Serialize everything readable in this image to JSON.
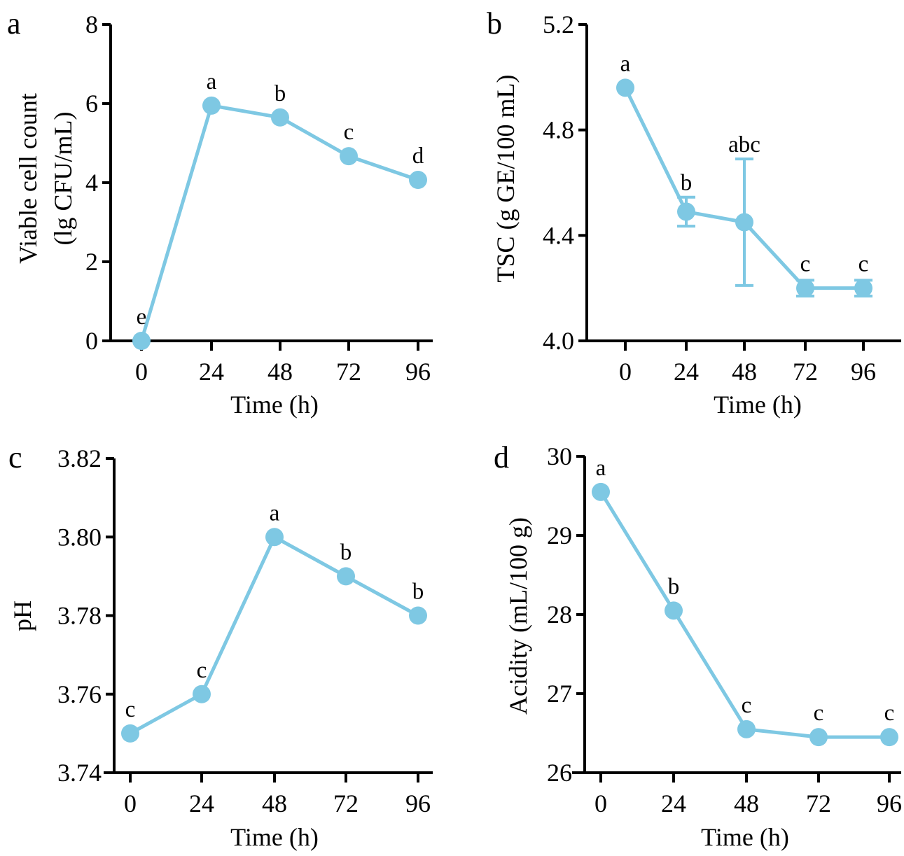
{
  "chart_data": [
    {
      "panel": "a",
      "type": "line",
      "title": "",
      "xlabel": "Time (h)",
      "ylabel_lines": [
        "Viable cell count",
        "(lg CFU/mL)"
      ],
      "x": [
        0,
        24,
        48,
        72,
        96
      ],
      "x_ticks": [
        "0",
        "24",
        "48",
        "72",
        "96"
      ],
      "y_ticks": [
        "0",
        "2",
        "4",
        "6",
        "8"
      ],
      "y_tick_values": [
        0,
        2,
        4,
        6,
        8
      ],
      "ylim": [
        0,
        8
      ],
      "values": [
        0,
        5.95,
        5.65,
        4.67,
        4.07
      ],
      "errors": [
        0,
        0,
        0,
        0,
        0
      ],
      "significance": [
        "e",
        "a",
        "b",
        "c",
        "d"
      ],
      "color": "#7ec8e3",
      "grid": false
    },
    {
      "panel": "b",
      "type": "line",
      "title": "",
      "xlabel": "Time (h)",
      "ylabel_lines": [
        "TSC (g GE/100 mL)"
      ],
      "x": [
        0,
        24,
        48,
        72,
        96
      ],
      "x_ticks": [
        "0",
        "24",
        "48",
        "72",
        "96"
      ],
      "y_ticks": [
        "4.0",
        "4.4",
        "4.8",
        "5.2"
      ],
      "y_tick_values": [
        4.0,
        4.4,
        4.8,
        5.2
      ],
      "ylim": [
        4.0,
        5.2
      ],
      "values": [
        4.96,
        4.49,
        4.45,
        4.2,
        4.2
      ],
      "errors": [
        0,
        0.055,
        0.24,
        0.03,
        0.03
      ],
      "significance": [
        "a",
        "b",
        "abc",
        "c",
        "c"
      ],
      "color": "#7ec8e3",
      "grid": false
    },
    {
      "panel": "c",
      "type": "line",
      "title": "",
      "xlabel": "Time (h)",
      "ylabel_lines": [
        "pH"
      ],
      "x": [
        0,
        24,
        48,
        72,
        96
      ],
      "x_ticks": [
        "0",
        "24",
        "48",
        "72",
        "96"
      ],
      "y_ticks": [
        "3.74",
        "3.76",
        "3.78",
        "3.80",
        "3.82"
      ],
      "y_tick_values": [
        3.74,
        3.76,
        3.78,
        3.8,
        3.82
      ],
      "ylim": [
        3.74,
        3.82
      ],
      "values": [
        3.75,
        3.76,
        3.8,
        3.79,
        3.78
      ],
      "errors": [
        0,
        0,
        0,
        0,
        0
      ],
      "significance": [
        "c",
        "c",
        "a",
        "b",
        "b"
      ],
      "color": "#7ec8e3",
      "grid": false
    },
    {
      "panel": "d",
      "type": "line",
      "title": "",
      "xlabel": "Time (h)",
      "ylabel_lines": [
        "Acidity (mL/100 g)"
      ],
      "x": [
        0,
        24,
        48,
        72,
        96
      ],
      "x_ticks": [
        "0",
        "24",
        "48",
        "72",
        "96"
      ],
      "y_ticks": [
        "26",
        "27",
        "28",
        "29",
        "30"
      ],
      "y_tick_values": [
        26,
        27,
        28,
        29,
        30
      ],
      "ylim": [
        26,
        30
      ],
      "values": [
        29.55,
        28.05,
        26.55,
        26.45,
        26.45
      ],
      "errors": [
        0,
        0,
        0,
        0,
        0
      ],
      "significance": [
        "a",
        "b",
        "c",
        "c",
        "c"
      ],
      "color": "#7ec8e3",
      "grid": false
    }
  ]
}
